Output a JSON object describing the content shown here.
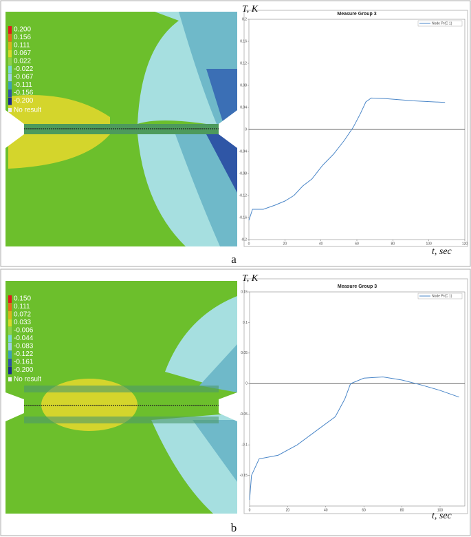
{
  "chart_data": [
    {
      "type": "line",
      "title": "Measure Group 3",
      "y_label": "T, K",
      "x_label": "t, sec",
      "x": [
        0,
        2,
        8,
        14.5,
        20,
        25,
        30,
        35,
        41,
        47,
        53,
        58,
        62,
        65,
        68,
        76,
        91,
        109
      ],
      "series": [
        {
          "name": "Node Pr(C 1)",
          "color": "#4a86c8",
          "values": [
            -0.165,
            -0.145,
            -0.145,
            -0.1375,
            -0.13,
            -0.12,
            -0.1025,
            -0.09,
            -0.065,
            -0.045,
            -0.02,
            0.004,
            0.029,
            0.05,
            0.057,
            0.056,
            0.052,
            0.049
          ]
        }
      ],
      "xlim": [
        0,
        120
      ],
      "xticks": [
        0,
        20,
        40,
        60,
        80,
        100,
        120
      ],
      "ylim": [
        -0.2,
        0.2
      ],
      "yticks": [
        -0.2,
        -0.16,
        -0.12,
        -0.08,
        -0.04,
        0,
        0.04,
        0.08,
        0.12,
        0.16,
        0.2
      ],
      "grid": false
    },
    {
      "type": "line",
      "title": "Measure Group 3",
      "y_label": "T, K",
      "x_label": "t, sec",
      "x": [
        0,
        1,
        5,
        15,
        25,
        35,
        45,
        50,
        53,
        60,
        70,
        80,
        90,
        100,
        110
      ],
      "series": [
        {
          "name": "Node Pr(C 1)",
          "color": "#4a86c8",
          "values": [
            -0.19,
            -0.15,
            -0.123,
            -0.117,
            -0.1,
            -0.077,
            -0.054,
            -0.025,
            0.0,
            0.009,
            0.011,
            0.006,
            -0.002,
            -0.011,
            -0.022
          ]
        }
      ],
      "xlim": [
        0,
        113
      ],
      "xticks": [
        0,
        20,
        40,
        60,
        80,
        100
      ],
      "ylim": [
        -0.2,
        0.15
      ],
      "yticks": [
        -0.15,
        -0.1,
        -0.05,
        0,
        0.05,
        0.1,
        0.15
      ],
      "grid": false
    }
  ],
  "contour_legends": [
    {
      "labels": [
        "0.200",
        "0.156",
        "0.111",
        "0.067",
        "0.022",
        "-0.022",
        "-0.067",
        "-0.111",
        "-0.156",
        "-0.200"
      ],
      "no_result": "No result"
    },
    {
      "labels": [
        "0.150",
        "0.111",
        "0.072",
        "0.033",
        "-0.006",
        "-0.044",
        "-0.083",
        "-0.122",
        "-0.161",
        "-0.200"
      ],
      "no_result": "No result"
    }
  ],
  "panel_labels": [
    "a",
    "b"
  ]
}
